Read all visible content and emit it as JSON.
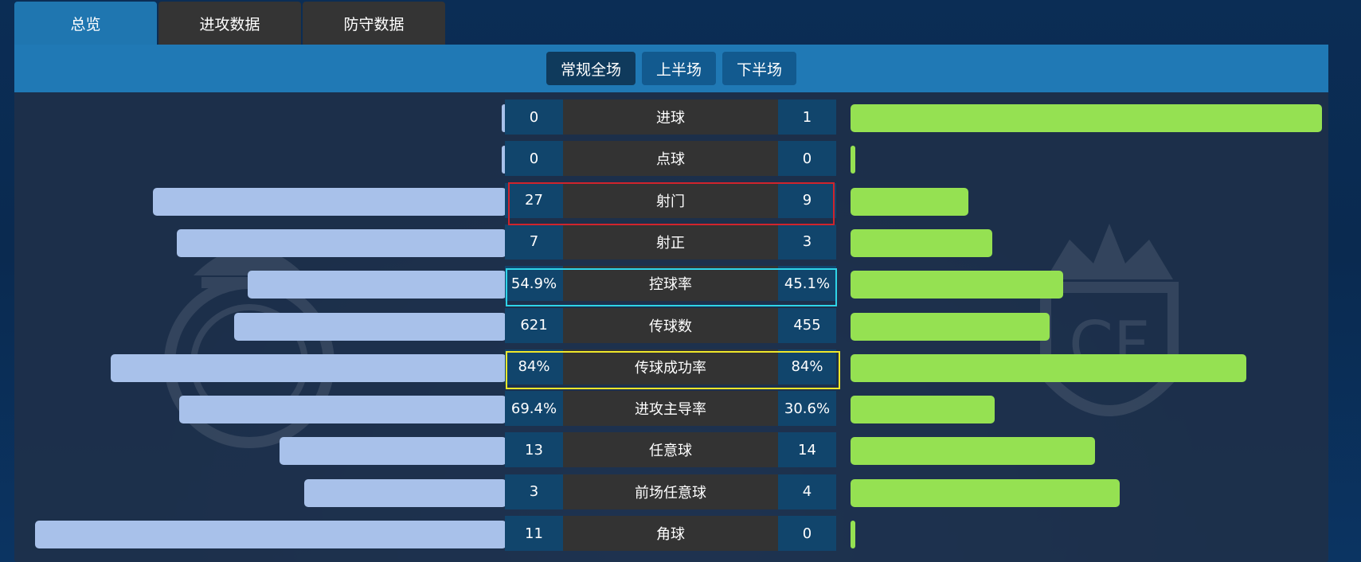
{
  "tabs": [
    "总览",
    "进攻数据",
    "防守数据"
  ],
  "segments": [
    "常规全场",
    "上半场",
    "下半场"
  ],
  "colors": {
    "home_bar": "#a8c1ea",
    "away_bar": "#95e152",
    "shots_box": "#d0242c",
    "possession_box": "#2fd4e8",
    "pass_box": "#f0e82a"
  },
  "crests": {
    "home": "real-madrid-crest",
    "away": "villarreal-crest"
  },
  "stats": [
    {
      "label": "进球",
      "home": "0",
      "away": "1",
      "home_level": 0.0,
      "away_level": 1.0
    },
    {
      "label": "点球",
      "home": "0",
      "away": "0",
      "home_level": 0.0,
      "away_level": 0.0
    },
    {
      "label": "射门",
      "home": "27",
      "away": "9",
      "home_level": 0.75,
      "away_level": 0.25
    },
    {
      "label": "射正",
      "home": "7",
      "away": "3",
      "home_level": 0.7,
      "away_level": 0.3
    },
    {
      "label": "控球率",
      "home": "54.9%",
      "away": "45.1%",
      "home_level": 0.549,
      "away_level": 0.451
    },
    {
      "label": "传球数",
      "home": "621",
      "away": "455",
      "home_level": 0.577,
      "away_level": 0.423
    },
    {
      "label": "传球成功率",
      "home": "84%",
      "away": "84%",
      "home_level": 0.84,
      "away_level": 0.84
    },
    {
      "label": "进攻主导率",
      "home": "69.4%",
      "away": "30.6%",
      "home_level": 0.694,
      "away_level": 0.306
    },
    {
      "label": "任意球",
      "home": "13",
      "away": "14",
      "home_level": 0.481,
      "away_level": 0.519
    },
    {
      "label": "前场任意球",
      "home": "3",
      "away": "4",
      "home_level": 0.429,
      "away_level": 0.571
    },
    {
      "label": "角球",
      "home": "11",
      "away": "0",
      "home_level": 1.0,
      "away_level": 0.0
    }
  ]
}
